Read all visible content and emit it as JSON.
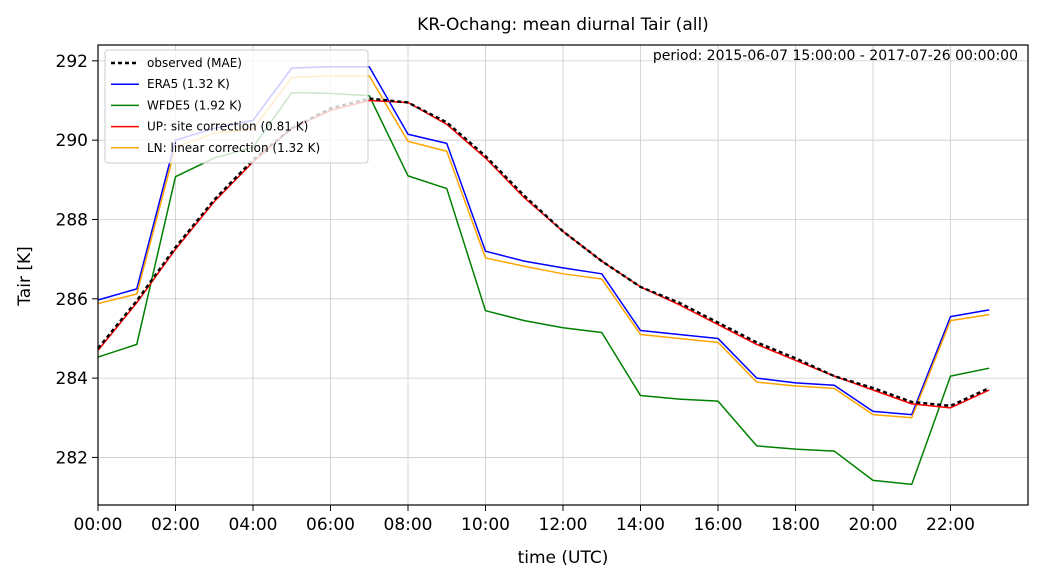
{
  "chart_data": {
    "type": "line",
    "title": "KR-Ochang: mean diurnal Tair (all)",
    "annotation": "period: 2015-06-07 15:00:00 - 2017-07-26 00:00:00",
    "xlabel": "time (UTC)",
    "ylabel": "Tair [K]",
    "x": [
      0,
      1,
      2,
      3,
      4,
      5,
      6,
      7,
      8,
      9,
      10,
      11,
      12,
      13,
      14,
      15,
      16,
      17,
      18,
      19,
      20,
      21,
      22,
      23
    ],
    "xlim": [
      0,
      24
    ],
    "ylim": [
      280.8,
      292.4
    ],
    "xticks": [
      0,
      2,
      4,
      6,
      8,
      10,
      12,
      14,
      16,
      18,
      20,
      22
    ],
    "xtick_labels": [
      "00:00",
      "02:00",
      "04:00",
      "06:00",
      "08:00",
      "10:00",
      "12:00",
      "14:00",
      "16:00",
      "18:00",
      "20:00",
      "22:00"
    ],
    "yticks": [
      282,
      284,
      286,
      288,
      290,
      292
    ],
    "ytick_labels": [
      "282",
      "284",
      "286",
      "288",
      "290",
      "292"
    ],
    "grid": true,
    "legend_position": "top-left",
    "series": [
      {
        "name": "observed (MAE)",
        "color": "#000000",
        "style": "dotted",
        "values": [
          284.75,
          285.95,
          287.3,
          288.5,
          289.5,
          290.3,
          290.8,
          291.05,
          290.95,
          290.45,
          289.6,
          288.6,
          287.7,
          286.95,
          286.3,
          285.9,
          285.4,
          284.9,
          284.5,
          284.05,
          283.75,
          283.4,
          283.3,
          283.75
        ]
      },
      {
        "name": "ERA5 (1.32 K)",
        "color": "#0000ff",
        "style": "solid",
        "values": [
          285.97,
          286.25,
          290.0,
          290.3,
          290.5,
          291.82,
          291.85,
          291.85,
          290.15,
          289.92,
          287.2,
          286.95,
          286.78,
          286.63,
          285.2,
          285.1,
          285.0,
          284.0,
          283.88,
          283.82,
          283.16,
          283.08,
          285.55,
          285.72
        ]
      },
      {
        "name": "WFDE5 (1.92 K)",
        "color": "#008000",
        "style": "solid",
        "values": [
          284.53,
          284.85,
          289.08,
          289.55,
          289.82,
          291.2,
          291.18,
          291.12,
          289.1,
          288.78,
          285.7,
          285.45,
          285.27,
          285.15,
          283.56,
          283.47,
          283.42,
          282.29,
          282.21,
          282.16,
          281.42,
          281.32,
          284.05,
          284.25
        ]
      },
      {
        "name": "UP: site correction (0.81 K)",
        "color": "#ff0000",
        "style": "solid",
        "values": [
          284.7,
          285.9,
          287.25,
          288.45,
          289.45,
          290.3,
          290.75,
          291.0,
          290.95,
          290.4,
          289.55,
          288.55,
          287.7,
          286.95,
          286.3,
          285.85,
          285.35,
          284.85,
          284.45,
          284.05,
          283.7,
          283.35,
          283.25,
          283.7
        ]
      },
      {
        "name": "LN: linear correction (1.32 K)",
        "color": "#ffa500",
        "style": "solid",
        "values": [
          285.88,
          286.12,
          289.82,
          290.18,
          290.28,
          291.58,
          291.62,
          291.62,
          289.97,
          289.72,
          287.03,
          286.82,
          286.63,
          286.5,
          285.1,
          285.0,
          284.9,
          283.9,
          283.8,
          283.74,
          283.08,
          283.0,
          285.45,
          285.6
        ]
      }
    ]
  }
}
